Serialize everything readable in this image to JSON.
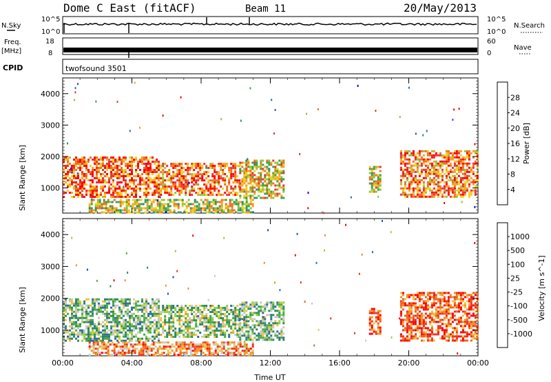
{
  "header": {
    "station": "Dome C East (fitACF)",
    "beam": "Beam 11",
    "date": "20/May/2013"
  },
  "strip_labels": {
    "nsky": "N.Sky",
    "freq_line1": "Freq.",
    "freq_line2": "[MHz]",
    "cpid": "CPID",
    "nsearch": "N.Search",
    "nave": "Nave",
    "nsky_ticks": [
      "10^5",
      "10^0"
    ],
    "freq_ticks": [
      "18",
      "8"
    ],
    "nave_ticks": [
      "60",
      "0"
    ],
    "cpid_text": "twofsound 3501"
  },
  "chart_data": [
    {
      "type": "heatmap",
      "name": "power",
      "ylabel": "Slant Range [km]",
      "xlabel": "",
      "xticks": [
        "00:00",
        "04:00",
        "08:00",
        "12:00",
        "16:00",
        "20:00",
        "00:00"
      ],
      "yticks": [
        1000,
        2000,
        3000,
        4000
      ],
      "ylim": [
        200,
        4500
      ],
      "colorbar_label": "Power [dB]",
      "colorbar_ticks": [
        "4",
        "8",
        "12",
        "16",
        "20",
        "24",
        "28"
      ],
      "colorbar_colors": [
        "#0000ff",
        "#3050c0",
        "#2f6f9c",
        "#2e8b6e",
        "#3aa348",
        "#8bc53f",
        "#f0d020",
        "#f7a020",
        "#f07020",
        "#ee3030",
        "#ff0000"
      ],
      "regions": [
        {
          "t0": 0.0,
          "t1": 5.5,
          "r0": 700,
          "r1": 2000,
          "level": 0.8
        },
        {
          "t0": 5.5,
          "t1": 10.2,
          "r0": 800,
          "r1": 1800,
          "level": 0.75
        },
        {
          "t0": 10.2,
          "t1": 12.8,
          "r0": 700,
          "r1": 1900,
          "level": 0.6
        },
        {
          "t0": 1.5,
          "t1": 11.0,
          "r0": 250,
          "r1": 650,
          "level": 0.55
        },
        {
          "t0": 17.7,
          "t1": 18.3,
          "r0": 900,
          "r1": 1700,
          "level": 0.6
        },
        {
          "t0": 19.5,
          "t1": 24.0,
          "r0": 700,
          "r1": 2200,
          "level": 0.75
        }
      ]
    },
    {
      "type": "heatmap",
      "name": "velocity",
      "ylabel": "Slant Range [km]",
      "xlabel": "Time UT",
      "xticks": [
        "00:00",
        "04:00",
        "08:00",
        "12:00",
        "16:00",
        "20:00",
        "00:00"
      ],
      "yticks": [
        1000,
        2000,
        3000,
        4000
      ],
      "ylim": [
        200,
        4500
      ],
      "colorbar_label": "Velocity [m s^-1]",
      "colorbar_ticks": [
        "1000",
        "500",
        "100",
        "25",
        "-25",
        "-100",
        "-500",
        "-1000"
      ],
      "colorbar_colors": [
        "#2050c0",
        "#2e6f9c",
        "#2e8b5a",
        "#4aa84a",
        "#90d040",
        "#c8c8c8",
        "#f0c040",
        "#f09020",
        "#f06020",
        "#f03020",
        "#ff0000"
      ],
      "regions": [
        {
          "t0": 0.0,
          "t1": 5.5,
          "r0": 700,
          "r1": 2000,
          "level": 0.35
        },
        {
          "t0": 5.5,
          "t1": 10.2,
          "r0": 800,
          "r1": 1800,
          "level": 0.4
        },
        {
          "t0": 10.2,
          "t1": 12.8,
          "r0": 700,
          "r1": 1900,
          "level": 0.35
        },
        {
          "t0": 1.5,
          "t1": 11.0,
          "r0": 250,
          "r1": 650,
          "level": 0.7
        },
        {
          "t0": 17.7,
          "t1": 18.3,
          "r0": 900,
          "r1": 1700,
          "level": 0.8
        },
        {
          "t0": 19.5,
          "t1": 24.0,
          "r0": 700,
          "r1": 2200,
          "level": 0.8
        }
      ]
    }
  ]
}
